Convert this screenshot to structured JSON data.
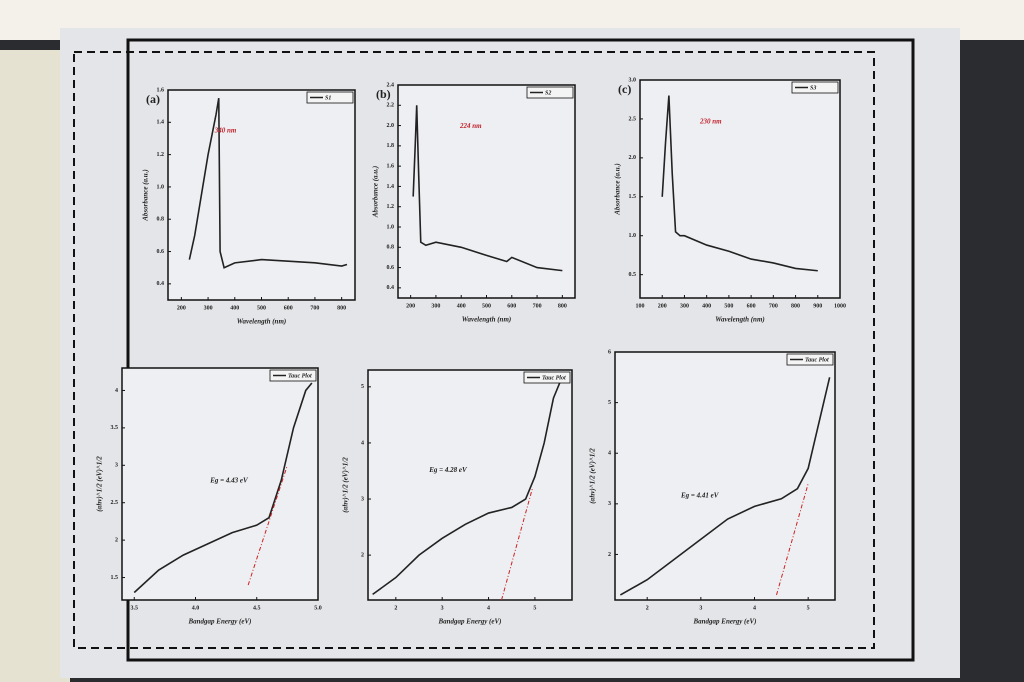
{
  "chart_data": [
    {
      "type": "line",
      "panel": "(a)",
      "annotation": "340 nm",
      "xlabel": "Wavelength (nm)",
      "ylabel": "Absorbance (a.u.)",
      "xlim": [
        150,
        850
      ],
      "xticks": [
        200,
        300,
        400,
        500,
        600,
        700,
        800
      ],
      "ylim": [
        0.3,
        1.6
      ],
      "yticks": [
        0.4,
        0.6,
        0.8,
        {
          "value": 1,
          "label": "1.0"
        },
        1.2,
        1.4,
        1.6
      ],
      "series": [
        {
          "name": "S1",
          "color": "#222222",
          "x": [
            230,
            250,
            280,
            300,
            330,
            340,
            345,
            360,
            400,
            500,
            600,
            700,
            800,
            820
          ],
          "values": [
            0.55,
            0.7,
            1.0,
            1.2,
            1.45,
            1.55,
            0.6,
            0.5,
            0.53,
            0.55,
            0.54,
            0.53,
            0.51,
            0.52
          ]
        }
      ]
    },
    {
      "type": "line",
      "panel": "(b)",
      "annotation": "224 nm",
      "xlabel": "Wavelength (nm)",
      "ylabel": "Absorbance (a.u.)",
      "xlim": [
        150,
        850
      ],
      "xticks": [
        200,
        300,
        400,
        500,
        600,
        700,
        800
      ],
      "ylim": [
        0.3,
        2.4
      ],
      "yticks": [
        0.4,
        0.6,
        0.8,
        {
          "value": 1,
          "label": "1.0"
        },
        1.2,
        1.4,
        1.6,
        1.8,
        {
          "value": 2,
          "label": "2.0"
        },
        2.2,
        2.4
      ],
      "series": [
        {
          "name": "S2",
          "color": "#222222",
          "x": [
            210,
            218,
            224,
            232,
            240,
            260,
            300,
            400,
            500,
            580,
            600,
            700,
            800
          ],
          "values": [
            1.3,
            1.8,
            2.2,
            1.5,
            0.85,
            0.82,
            0.85,
            0.8,
            0.72,
            0.66,
            0.7,
            0.6,
            0.57
          ]
        }
      ]
    },
    {
      "type": "line",
      "panel": "(c)",
      "annotation": "230 nm",
      "xlabel": "Wavelength (nm)",
      "ylabel": "Absorbance (a.u.)",
      "xlim": [
        100,
        1000
      ],
      "xticks": [
        100,
        200,
        300,
        400,
        500,
        600,
        700,
        800,
        900,
        1000
      ],
      "ylim": [
        0.2,
        3.0
      ],
      "yticks": [
        0.5,
        {
          "value": 1,
          "label": "1.0"
        },
        1.5,
        {
          "value": 2,
          "label": "2.0"
        },
        2.5,
        {
          "value": 3,
          "label": "3.0"
        }
      ],
      "series": [
        {
          "name": "S3",
          "color": "#222222",
          "x": [
            200,
            215,
            230,
            245,
            260,
            280,
            300,
            400,
            500,
            600,
            700,
            800,
            900
          ],
          "values": [
            1.5,
            2.2,
            2.8,
            1.8,
            1.05,
            1.0,
            1.0,
            0.88,
            0.8,
            0.7,
            0.65,
            0.58,
            0.55
          ]
        }
      ]
    },
    {
      "type": "line",
      "annotation": "Eg = 4.43 eV",
      "xlabel": "Bandgap Energy (eV)",
      "ylabel": "(αhν)^1/2 (eV)^1/2",
      "xlim": [
        3.4,
        5.0
      ],
      "xticks": [
        3.5,
        {
          "value": 4,
          "label": "4.0"
        },
        4.5,
        {
          "value": 5,
          "label": "5.0"
        }
      ],
      "ylim": [
        1.2,
        4.3
      ],
      "yticks": [
        1.5,
        2,
        2.5,
        3,
        3.5,
        4
      ],
      "series": [
        {
          "name": "Tauc Plot",
          "color": "#222222",
          "x": [
            3.5,
            3.7,
            3.9,
            4.1,
            4.3,
            4.5,
            4.6,
            4.7,
            4.8,
            4.9,
            4.95
          ],
          "values": [
            1.3,
            1.6,
            1.8,
            1.95,
            2.1,
            2.2,
            2.3,
            2.8,
            3.5,
            4.0,
            4.1
          ]
        },
        {
          "color": "#cc2222",
          "dash": true,
          "x": [
            4.43,
            4.75
          ],
          "values": [
            1.4,
            3.0
          ]
        }
      ]
    },
    {
      "type": "line",
      "annotation": "Eg = 4.28 eV",
      "xlabel": "Bandgap Energy (eV)",
      "ylabel": "(αhν)^1/2 (eV)^1/2",
      "xlim": [
        1.4,
        5.8
      ],
      "xticks": [
        2,
        3,
        4,
        5
      ],
      "ylim": [
        1.2,
        5.3
      ],
      "yticks": [
        2,
        3,
        4,
        5
      ],
      "series": [
        {
          "name": "Tauc Plot",
          "color": "#222222",
          "x": [
            1.5,
            2,
            2.5,
            3,
            3.5,
            4,
            4.5,
            4.8,
            5,
            5.2,
            5.4,
            5.6
          ],
          "values": [
            1.3,
            1.6,
            2.0,
            2.3,
            2.55,
            2.75,
            2.85,
            3.0,
            3.4,
            4.0,
            4.8,
            5.2
          ]
        },
        {
          "color": "#cc2222",
          "dash": true,
          "x": [
            4.28,
            4.95
          ],
          "values": [
            1.2,
            3.2
          ]
        }
      ]
    },
    {
      "type": "line",
      "annotation": "Eg = 4.41 eV",
      "xlabel": "Bandgap Energy (eV)",
      "ylabel": "(αhν)^1/2 (eV)^1/2",
      "xlim": [
        1.4,
        5.5
      ],
      "xticks": [
        2,
        3,
        4,
        5
      ],
      "ylim": [
        1.1,
        6
      ],
      "yticks": [
        2,
        3,
        4,
        5,
        6
      ],
      "series": [
        {
          "name": "Tauc Plot",
          "color": "#222222",
          "x": [
            1.5,
            2,
            2.5,
            3,
            3.5,
            4,
            4.5,
            4.8,
            5,
            5.2,
            5.4
          ],
          "values": [
            1.2,
            1.5,
            1.9,
            2.3,
            2.7,
            2.95,
            3.1,
            3.3,
            3.7,
            4.6,
            5.5
          ]
        },
        {
          "color": "#cc2222",
          "dash": true,
          "x": [
            4.41,
            5.0
          ],
          "values": [
            1.2,
            3.4
          ]
        }
      ]
    }
  ]
}
